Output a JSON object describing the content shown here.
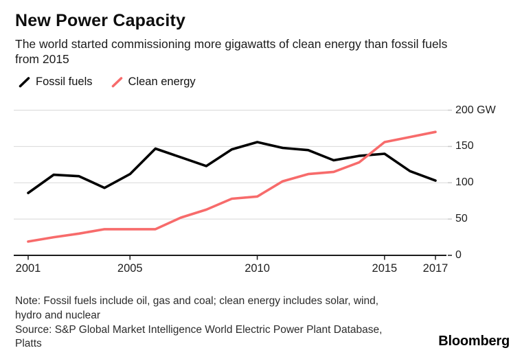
{
  "header": {
    "title": "New Power Capacity",
    "subtitle_lines": [
      "The world started commissioning more gigawatts of clean energy than fossil fuels",
      "from 2015"
    ]
  },
  "legend": [
    {
      "label": "Fossil fuels",
      "color": "#000000"
    },
    {
      "label": "Clean energy",
      "color": "#f76b6b"
    }
  ],
  "chart_data": {
    "type": "line",
    "title": "New Power Capacity",
    "xlabel": "",
    "ylabel": "GW",
    "xlim": [
      2001,
      2017
    ],
    "ylim": [
      0,
      200
    ],
    "grid": "horizontal",
    "legend_position": "top-left",
    "x": [
      2001,
      2002,
      2003,
      2004,
      2005,
      2006,
      2007,
      2008,
      2009,
      2010,
      2011,
      2012,
      2013,
      2014,
      2015,
      2016,
      2017
    ],
    "series": [
      {
        "name": "Fossil fuels",
        "color": "#000000",
        "values": [
          86,
          111,
          109,
          93,
          112,
          147,
          135,
          123,
          146,
          156,
          148,
          145,
          131,
          137,
          140,
          116,
          103
        ]
      },
      {
        "name": "Clean energy",
        "color": "#f76b6b",
        "values": [
          19,
          25,
          30,
          36,
          36,
          36,
          52,
          63,
          78,
          81,
          102,
          112,
          115,
          128,
          156,
          163,
          170
        ]
      }
    ],
    "y_ticks": [
      {
        "value": 200,
        "label": "200 GW"
      },
      {
        "value": 150,
        "label": "150"
      },
      {
        "value": 100,
        "label": "100"
      },
      {
        "value": 50,
        "label": "50"
      },
      {
        "value": 0,
        "label": "0"
      }
    ],
    "x_ticks": [
      {
        "value": 2001,
        "label": "2001"
      },
      {
        "value": 2005,
        "label": "2005"
      },
      {
        "value": 2010,
        "label": "2010"
      },
      {
        "value": 2015,
        "label": "2015"
      },
      {
        "value": 2017,
        "label": "2017"
      }
    ]
  },
  "footer": {
    "note_lines": [
      "Note: Fossil fuels include oil, gas and coal; clean energy includes solar, wind,",
      "hydro and nuclear",
      "Source: S&P Global Market Intelligence World Electric Power Plant Database,",
      "Platts"
    ],
    "brand": "Bloomberg"
  }
}
